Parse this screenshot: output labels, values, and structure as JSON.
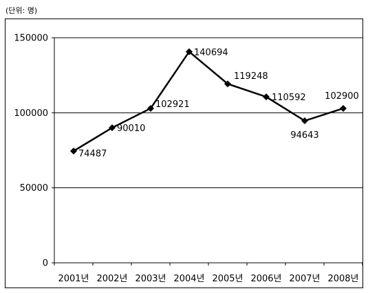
{
  "unit_label": "(단위: 명)",
  "chart_data": {
    "type": "line",
    "title": "",
    "xlabel": "",
    "ylabel": "",
    "categories": [
      "2001년",
      "2002년",
      "2003년",
      "2004년",
      "2005년",
      "2006년",
      "2007년",
      "2008년"
    ],
    "series": [
      {
        "values": [
          74487,
          90010,
          102921,
          140694,
          119248,
          110592,
          94643,
          102900
        ],
        "data_labels": [
          "74487",
          "90010",
          "102921",
          "140694",
          "119248",
          "110592",
          "94643",
          "102900"
        ]
      }
    ],
    "ylim": [
      0,
      150000
    ],
    "yticks": [
      0,
      50000,
      100000,
      150000
    ],
    "ytick_labels": [
      "0",
      "50000",
      "100000",
      "150000"
    ],
    "grid": "horizontal",
    "legend": "none",
    "colors": {
      "line": "#000000",
      "grid": "#000000"
    }
  }
}
